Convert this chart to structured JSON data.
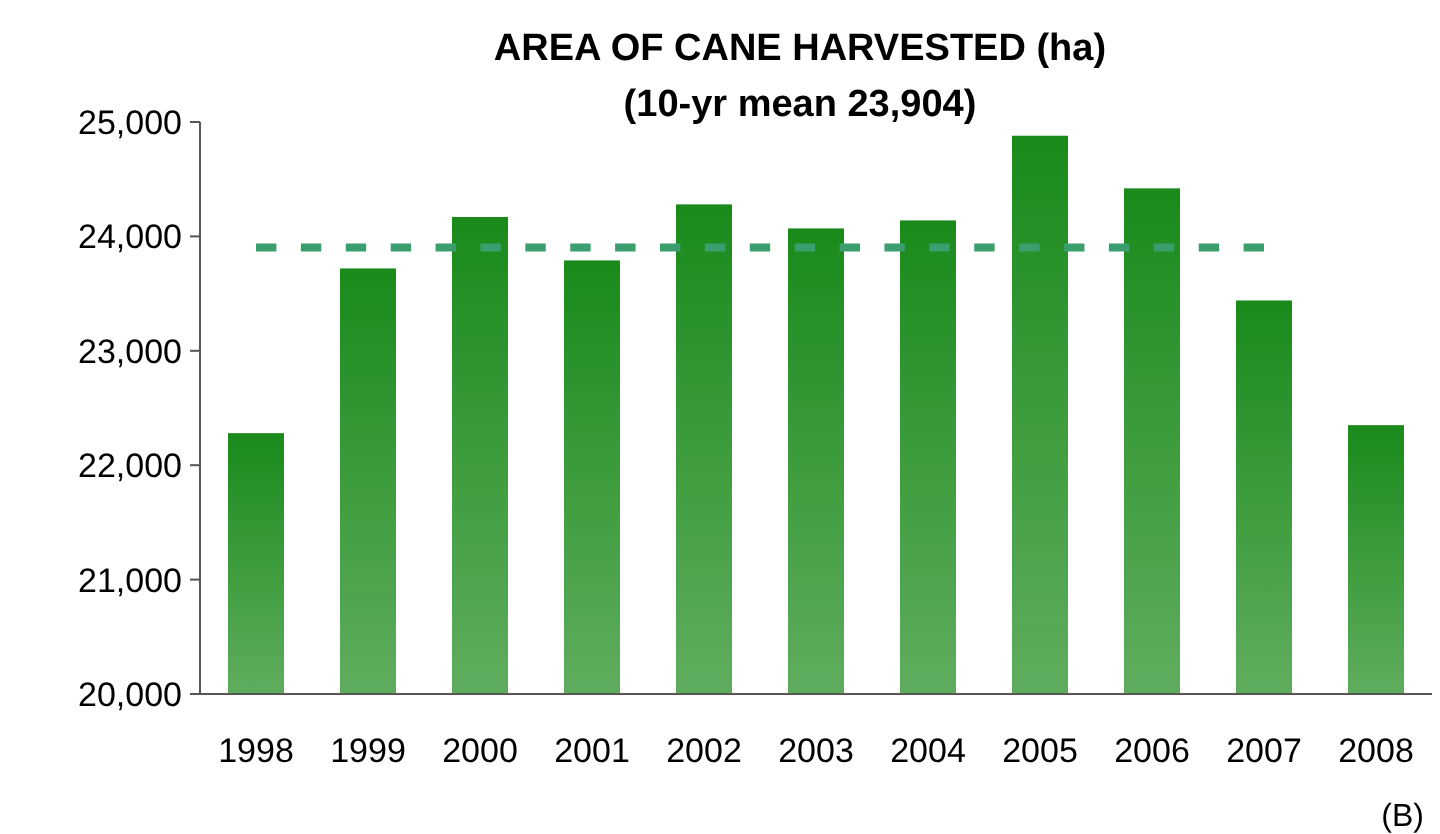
{
  "chart_data": {
    "type": "bar",
    "title": "AREA OF CANE HARVESTED (ha)",
    "subtitle": "(10-yr mean 23,904)",
    "categories": [
      "1998",
      "1999",
      "2000",
      "2001",
      "2002",
      "2003",
      "2004",
      "2005",
      "2006",
      "2007",
      "2008"
    ],
    "series": [
      {
        "color": "#1a8a1a",
        "values": [
          22280,
          23720,
          24170,
          23790,
          24280,
          24070,
          24140,
          24880,
          24420,
          23440,
          22350
        ]
      },
      {
        "type": "line",
        "color": "#3a9e6e",
        "line_style": "dashed",
        "values": [
          23904,
          23904,
          23904,
          23904,
          23904,
          23904,
          23904,
          23904,
          23904,
          23904,
          null
        ]
      }
    ],
    "ylim": [
      20000,
      25000
    ],
    "yticks": [
      {
        "value": 20000,
        "label": "20,000"
      },
      {
        "value": 21000,
        "label": "21,000"
      },
      {
        "value": 22000,
        "label": "22,000"
      },
      {
        "value": 23000,
        "label": "23,000"
      },
      {
        "value": 24000,
        "label": "24,000"
      },
      {
        "value": 25000,
        "label": "25,000"
      }
    ],
    "annotations": [
      "(B)"
    ]
  }
}
